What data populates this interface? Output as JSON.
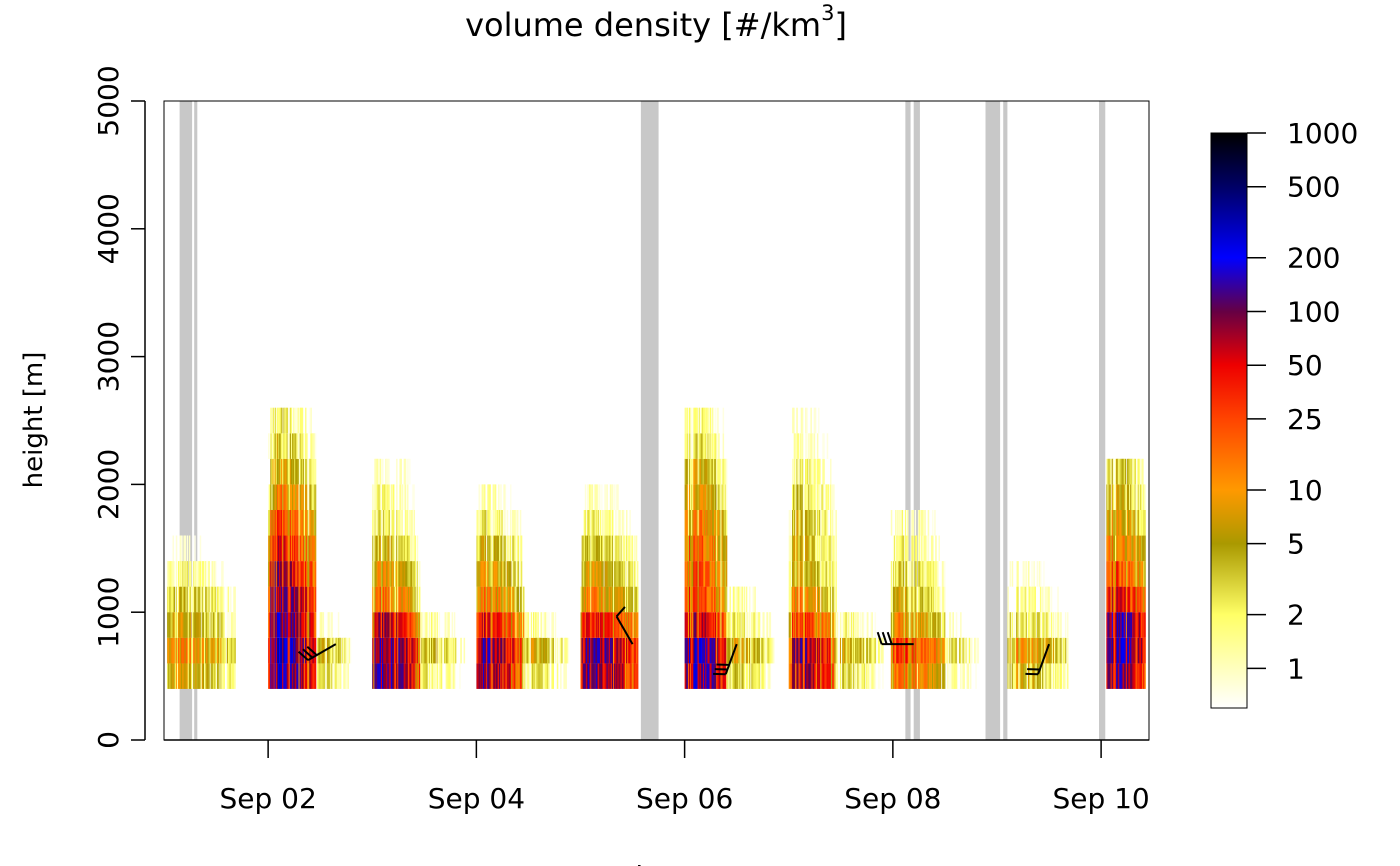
{
  "chart_data": {
    "type": "heatmap",
    "title": "volume density [#/km³]",
    "title_main": "volume density [#/km",
    "title_sup": "3",
    "title_end": "]",
    "ylabel": "height [m]",
    "xlabel": "time",
    "ylim": [
      0,
      5000
    ],
    "y_ticks": [
      0,
      1000,
      2000,
      3000,
      4000,
      5000
    ],
    "y_tick_labels": [
      "0",
      "1000",
      "2000",
      "3000",
      "4000",
      "5000"
    ],
    "xlim_days": [
      1.0,
      10.46
    ],
    "x_ticks": [
      {
        "label": "Sep 02",
        "day": 2
      },
      {
        "label": "Sep 04",
        "day": 4
      },
      {
        "label": "Sep 06",
        "day": 6
      },
      {
        "label": "Sep 08",
        "day": 8
      },
      {
        "label": "Sep 10",
        "day": 10
      }
    ],
    "bin_height_m": 200,
    "colorbar": {
      "scale": "log",
      "range": [
        0.6,
        1000
      ],
      "ticks": [
        1,
        2,
        5,
        10,
        25,
        50,
        100,
        200,
        500,
        1000
      ],
      "tick_labels": [
        "1",
        "2",
        "5",
        "10",
        "25",
        "50",
        "100",
        "200",
        "500",
        "1000"
      ],
      "stops": [
        {
          "value": 0.6,
          "color": "#ffffff"
        },
        {
          "value": 2,
          "color": "#ffff66"
        },
        {
          "value": 5,
          "color": "#aa9900"
        },
        {
          "value": 10,
          "color": "#ff9900"
        },
        {
          "value": 25,
          "color": "#ff4400"
        },
        {
          "value": 50,
          "color": "#ee0000"
        },
        {
          "value": 100,
          "color": "#660044"
        },
        {
          "value": 200,
          "color": "#0000ff"
        },
        {
          "value": 500,
          "color": "#000066"
        },
        {
          "value": 1000,
          "color": "#000000"
        }
      ]
    },
    "no_data_color": "#c8c8c8",
    "no_data_intervals": [
      [
        1.15,
        1.27
      ],
      [
        1.29,
        1.32
      ],
      [
        5.58,
        5.75
      ],
      [
        8.12,
        8.17
      ],
      [
        8.2,
        8.26
      ],
      [
        8.89,
        9.03
      ],
      [
        9.06,
        9.1
      ],
      [
        9.98,
        10.04
      ]
    ],
    "nights": [
      {
        "start": 1.03,
        "end": 1.68,
        "peak": 15,
        "top": 1600,
        "profile": [
          0.5,
          1,
          0.45,
          0.3,
          0.13,
          0.05,
          0.02
        ]
      },
      {
        "start": 2.0,
        "end": 2.45,
        "peak": 260,
        "top": 2600,
        "profile": [
          0.8,
          1,
          0.7,
          0.55,
          0.35,
          0.2,
          0.12,
          0.06,
          0.03,
          0.02,
          0.01
        ]
      },
      {
        "start": 2.45,
        "end": 2.8,
        "peak": 5,
        "top": 1200,
        "profile": [
          0.6,
          1,
          0.2,
          0.1,
          0.05
        ]
      },
      {
        "start": 3.0,
        "end": 3.45,
        "peak": 180,
        "top": 2200,
        "profile": [
          0.9,
          1,
          0.45,
          0.12,
          0.06,
          0.03,
          0.015,
          0.01,
          0.008
        ]
      },
      {
        "start": 3.45,
        "end": 3.88,
        "peak": 5,
        "top": 1000,
        "profile": [
          0.5,
          1,
          0.3,
          0.1
        ]
      },
      {
        "start": 4.0,
        "end": 4.45,
        "peak": 130,
        "top": 2000,
        "profile": [
          0.9,
          1,
          0.4,
          0.12,
          0.07,
          0.04,
          0.02,
          0.01
        ]
      },
      {
        "start": 4.45,
        "end": 4.88,
        "peak": 6,
        "top": 1000,
        "profile": [
          0.5,
          1,
          0.25,
          0.08
        ]
      },
      {
        "start": 5.0,
        "end": 5.55,
        "peak": 140,
        "top": 2000,
        "profile": [
          0.9,
          1,
          0.35,
          0.1,
          0.05,
          0.03,
          0.015,
          0.008
        ]
      },
      {
        "start": 6.0,
        "end": 6.4,
        "peak": 220,
        "top": 2600,
        "profile": [
          0.85,
          1,
          0.4,
          0.18,
          0.14,
          0.12,
          0.08,
          0.05,
          0.03,
          0.015,
          0.01
        ]
      },
      {
        "start": 6.4,
        "end": 6.85,
        "peak": 7,
        "top": 1200,
        "profile": [
          0.5,
          1,
          0.4,
          0.2,
          0.08
        ]
      },
      {
        "start": 7.0,
        "end": 7.45,
        "peak": 120,
        "top": 2600,
        "profile": [
          0.85,
          1,
          0.3,
          0.12,
          0.07,
          0.05,
          0.04,
          0.03,
          0.02,
          0.012,
          0.008
        ]
      },
      {
        "start": 7.45,
        "end": 7.9,
        "peak": 6,
        "top": 1000,
        "profile": [
          0.5,
          1,
          0.3,
          0.1
        ]
      },
      {
        "start": 7.98,
        "end": 8.5,
        "peak": 40,
        "top": 1800,
        "profile": [
          0.5,
          1,
          0.3,
          0.15,
          0.1,
          0.06,
          0.04
        ]
      },
      {
        "start": 8.5,
        "end": 8.85,
        "peak": 3,
        "top": 1000,
        "profile": [
          0.5,
          1,
          0.3,
          0.1
        ]
      },
      {
        "start": 9.1,
        "end": 9.68,
        "peak": 12,
        "top": 1400,
        "profile": [
          0.5,
          1,
          0.3,
          0.15,
          0.08
        ]
      },
      {
        "start": 10.05,
        "end": 10.42,
        "peak": 220,
        "top": 2200,
        "profile": [
          0.7,
          1,
          0.9,
          0.3,
          0.15,
          0.09,
          0.05,
          0.03,
          0.02
        ]
      }
    ],
    "wind_barbs": [
      {
        "day": 2.65,
        "height": 750,
        "dir_deg": 240,
        "speed_kt": 30
      },
      {
        "day": 5.5,
        "height": 750,
        "dir_deg": 330,
        "speed_kt": 10
      },
      {
        "day": 6.5,
        "height": 750,
        "dir_deg": 200,
        "speed_kt": 30
      },
      {
        "day": 8.2,
        "height": 750,
        "dir_deg": 270,
        "speed_kt": 30
      },
      {
        "day": 9.5,
        "height": 750,
        "dir_deg": 200,
        "speed_kt": 20
      }
    ]
  }
}
